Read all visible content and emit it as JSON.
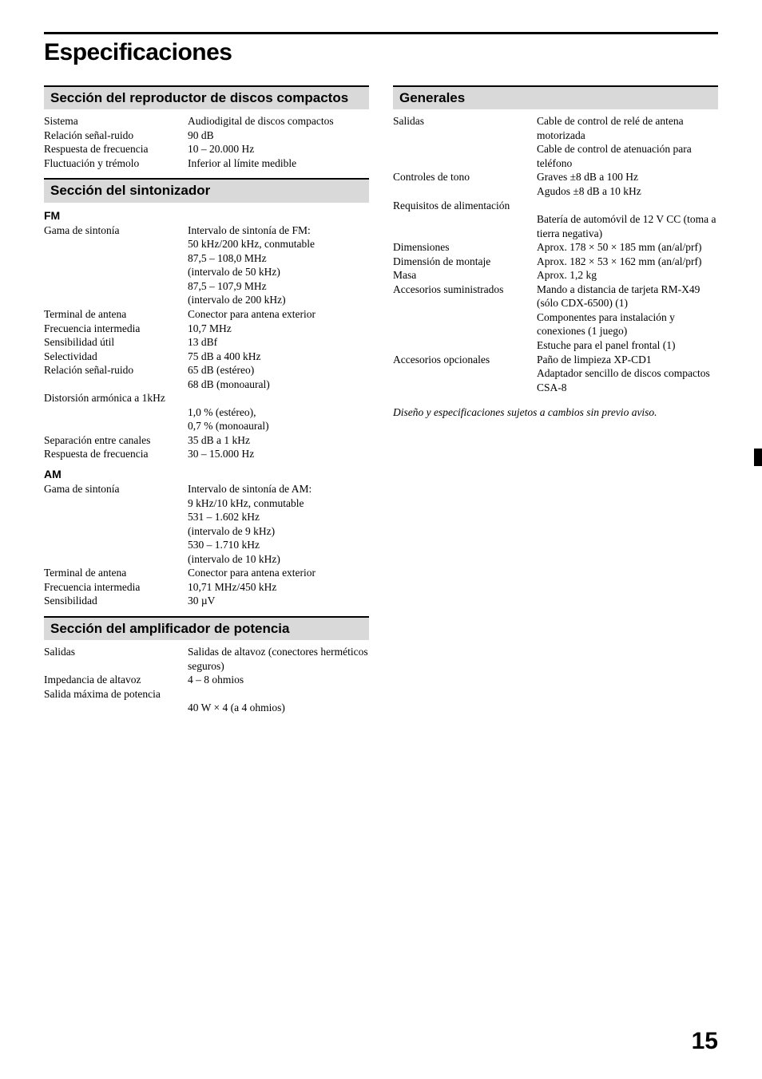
{
  "title": "Especificaciones",
  "pageNumber": "15",
  "footnote": "Diseño y especificaciones sujetos a cambios sin previo aviso.",
  "left": {
    "cd": {
      "heading": "Sección del reproductor de discos compactos",
      "rows": [
        {
          "label": "Sistema",
          "value": "Audiodigital de discos compactos"
        },
        {
          "label": "Relación señal-ruido",
          "value": "90 dB"
        },
        {
          "label": "Respuesta de frecuencia",
          "value": "10 – 20.000 Hz"
        },
        {
          "label": "Fluctuación y trémolo",
          "value": "Inferior al límite medible"
        }
      ]
    },
    "tuner": {
      "heading": "Sección del sintonizador",
      "fm": {
        "heading": "FM",
        "rows": [
          {
            "label": "Gama de sintonía",
            "value": "Intervalo de sintonía de FM:\n50 kHz/200 kHz, conmutable\n87,5 – 108,0 MHz\n(intervalo de 50 kHz)\n87,5 – 107,9 MHz\n(intervalo de 200 kHz)"
          },
          {
            "label": "Terminal de antena",
            "value": "Conector para antena exterior"
          },
          {
            "label": "Frecuencia intermedia",
            "value": "10,7 MHz"
          },
          {
            "label": "Sensibilidad útil",
            "value": "13 dBf"
          },
          {
            "label": "Selectividad",
            "value": "75 dB a 400 kHz"
          },
          {
            "label": "Relación señal-ruido",
            "value": "65 dB (estéreo)\n68 dB (monoaural)"
          }
        ],
        "dist": {
          "label": "Distorsión armónica a 1kHz",
          "value": "1,0 % (estéreo),\n0,7 % (monoaural)"
        },
        "rows2": [
          {
            "label": "Separación entre canales",
            "value": "35 dB a 1 kHz"
          },
          {
            "label": "Respuesta de frecuencia",
            "value": "30 – 15.000 Hz"
          }
        ]
      },
      "am": {
        "heading": "AM",
        "rows": [
          {
            "label": "Gama de sintonía",
            "value": "Intervalo de sintonía de AM:\n9 kHz/10 kHz, conmutable\n531 – 1.602 kHz\n(intervalo de 9 kHz)\n530 – 1.710 kHz\n(intervalo de 10 kHz)"
          },
          {
            "label": "Terminal de antena",
            "value": "Conector para antena exterior"
          },
          {
            "label": "Frecuencia intermedia",
            "value": "10,71 MHz/450 kHz"
          },
          {
            "label": "Sensibilidad",
            "value": "30 µV"
          }
        ]
      }
    },
    "amp": {
      "heading": "Sección del amplificador de potencia",
      "rows": [
        {
          "label": "Salidas",
          "value": "Salidas de altavoz (conectores herméticos seguros)"
        },
        {
          "label": "Impedancia de altavoz",
          "value": "4 – 8 ohmios"
        }
      ],
      "max": {
        "label": "Salida máxima de potencia",
        "value": "40 W × 4 (a 4 ohmios)"
      }
    }
  },
  "right": {
    "general": {
      "heading": "Generales",
      "rows": [
        {
          "label": "Salidas",
          "value": "Cable de control de relé de antena motorizada\nCable de control de atenuación para teléfono"
        },
        {
          "label": "Controles de tono",
          "value": "Graves ±8 dB a 100 Hz\nAgudos ±8 dB a 10 kHz"
        }
      ],
      "power": {
        "label": "Requisitos de alimentación",
        "value": "Batería de automóvil de 12 V CC (toma a tierra negativa)"
      },
      "rows2": [
        {
          "label": "Dimensiones",
          "value": "Aprox. 178 × 50 × 185 mm (an/al/prf)"
        },
        {
          "label": "Dimensión de montaje",
          "value": "Aprox. 182 × 53 × 162 mm (an/al/prf)"
        },
        {
          "label": "Masa",
          "value": "Aprox. 1,2 kg"
        },
        {
          "label": "Accesorios suministrados",
          "value": "Mando a distancia de tarjeta RM-X49 (sólo CDX-6500) (1)\nComponentes para instalación y conexiones (1 juego)\nEstuche para el panel frontal (1)"
        },
        {
          "label": "Accesorios opcionales",
          "value": "Paño de limpieza XP-CD1\nAdaptador sencillo de discos compactos CSA-8"
        }
      ]
    }
  }
}
